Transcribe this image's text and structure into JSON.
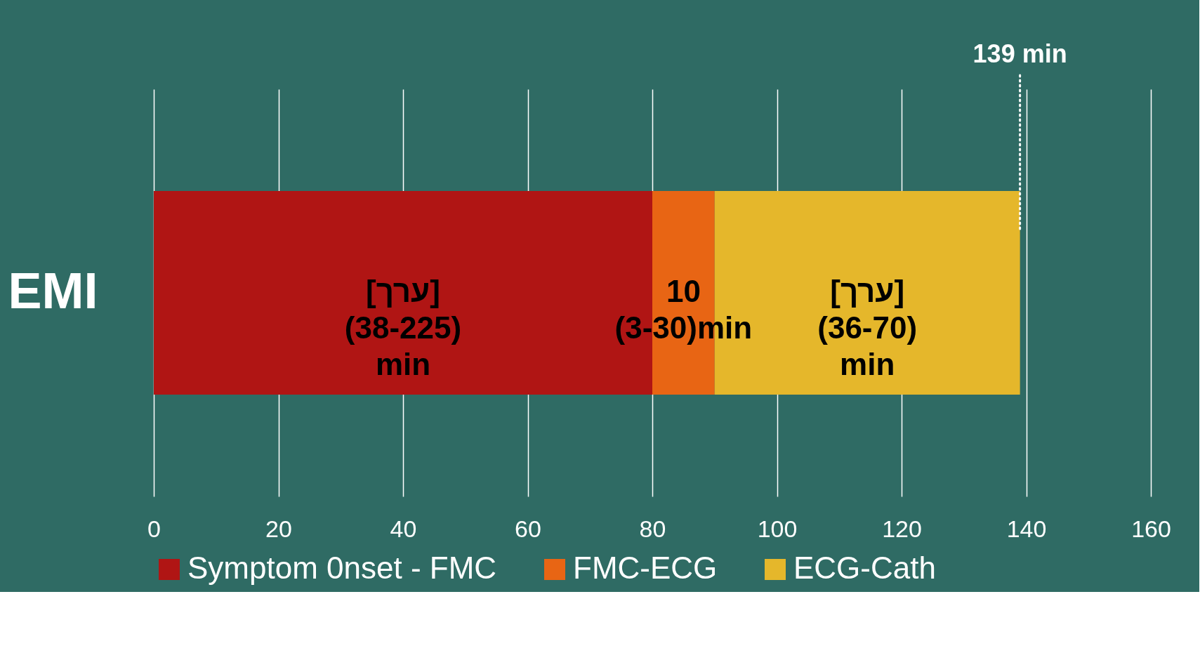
{
  "chart_data": {
    "type": "bar",
    "orientation": "horizontal",
    "stacked": true,
    "categories": [
      "EMI"
    ],
    "series": [
      {
        "name": "Symptom 0nset - FMC",
        "color": "#b01514",
        "values": [
          80
        ],
        "value_labels": [
          "[ערך]\n(38-225)\nmin"
        ]
      },
      {
        "name": "FMC-ECG",
        "color": "#e86514",
        "values": [
          10
        ],
        "value_labels": [
          "10\n(3-30)min"
        ]
      },
      {
        "name": "ECG-Cath",
        "color": "#e5b72b",
        "values": [
          49
        ],
        "value_labels": [
          "[ערך]\n(36-70)\nmin"
        ]
      }
    ],
    "xlim": [
      0,
      160
    ],
    "xticks": [
      0,
      20,
      40,
      60,
      80,
      100,
      120,
      140,
      160
    ],
    "grid": "x",
    "legend": "bottom",
    "ref_lines": [
      {
        "axis": "x",
        "value": 139,
        "label": "139 min",
        "color": "#ffffff",
        "line_style": "dotted"
      }
    ]
  }
}
